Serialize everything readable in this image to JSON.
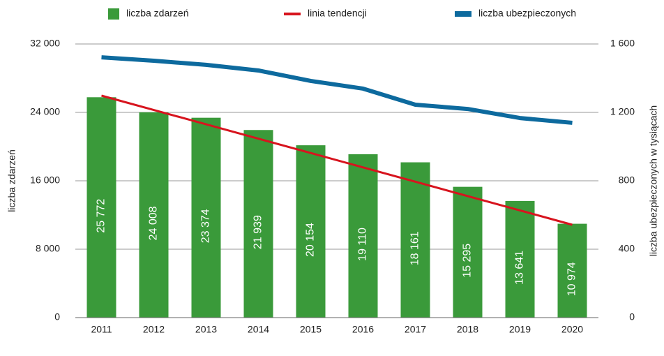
{
  "chart_data": {
    "type": "bar",
    "categories": [
      "2011",
      "2012",
      "2013",
      "2014",
      "2015",
      "2016",
      "2017",
      "2018",
      "2019",
      "2020"
    ],
    "series": [
      {
        "name": "liczba zdarzeń",
        "type": "bar",
        "color": "#3a9a3a",
        "values": [
          25772,
          24008,
          23374,
          21939,
          20154,
          19110,
          18161,
          15295,
          13641,
          10974
        ],
        "value_labels": [
          "25 772",
          "24 008",
          "23 374",
          "21 939",
          "20 154",
          "19 110",
          "18 161",
          "15 295",
          "13 641",
          "10 974"
        ]
      },
      {
        "name": "linia tendencji",
        "type": "line",
        "color": "#d7141e",
        "values": [
          25959,
          24281,
          22603,
          20925,
          19247,
          17569,
          15891,
          14213,
          12535,
          10857
        ]
      },
      {
        "name": "liczba ubezpieczonych",
        "type": "line",
        "axis": "y2",
        "color": "#0d6a9e",
        "values": [
          1522,
          1502,
          1478,
          1445,
          1384,
          1339,
          1245,
          1220,
          1167,
          1139
        ]
      }
    ],
    "ylabel": "liczba zdarzeń",
    "y2label": "liczba ubezpieczonych w tysiącach",
    "ylim": [
      0,
      32000
    ],
    "yticks": [
      0,
      {
        "value": 8000,
        "label": "8 000"
      },
      {
        "value": 16000,
        "label": "16 000"
      },
      {
        "value": 24000,
        "label": "24 000"
      },
      {
        "value": 32000,
        "label": "32 000"
      }
    ],
    "y2lim": [
      0,
      1600
    ],
    "y2ticks": [
      0,
      400,
      800,
      {
        "value": 1200,
        "label": "1 200"
      },
      {
        "value": 1600,
        "label": "1 600"
      }
    ],
    "grid": true,
    "legend": "top"
  }
}
